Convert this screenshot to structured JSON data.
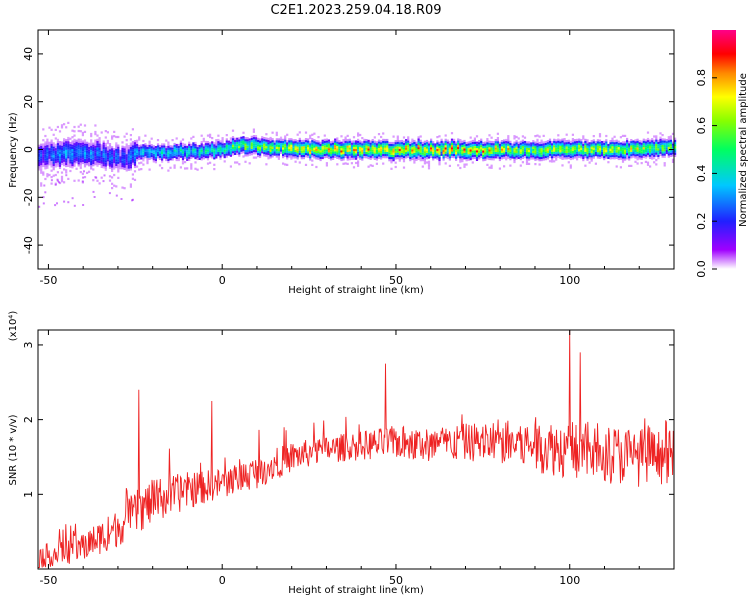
{
  "title": "C2E1.2023.259.04.18.R09",
  "chart_data": [
    {
      "type": "heatmap",
      "xlabel": "Height of straight line (km)",
      "ylabel": "Frequency (Hz)",
      "xlim": [
        -53,
        130
      ],
      "ylim": [
        -50,
        50
      ],
      "xticks": [
        -50,
        0,
        50,
        100
      ],
      "yticks": [
        -40,
        -20,
        0,
        20,
        40
      ],
      "colorbar": {
        "label": "Normalized spectral amplitude",
        "range": [
          0,
          1
        ],
        "ticks": [
          "0.0",
          "0.2",
          "0.4",
          "0.6",
          "0.8"
        ]
      },
      "ridge": {
        "x": [
          -53,
          -45,
          -35,
          -28,
          -25,
          -15,
          0,
          5,
          15,
          30,
          50,
          70,
          90,
          110,
          130
        ],
        "y": [
          -3,
          -1,
          -2,
          -4,
          -1,
          -1,
          0,
          2,
          1,
          0,
          0,
          0,
          0,
          0,
          1
        ],
        "peak_amplitude": [
          0.3,
          0.4,
          0.35,
          0.3,
          0.45,
          0.5,
          0.6,
          0.7,
          0.8,
          0.95,
          0.95,
          0.95,
          0.8,
          0.85,
          0.7
        ]
      }
    },
    {
      "type": "line",
      "xlabel": "Height of straight line (km)",
      "ylabel": "SNR (10 * v/v)",
      "y_multiplier": "(x10⁴)",
      "xlim": [
        -53,
        130
      ],
      "ylim": [
        0,
        3.2
      ],
      "xticks": [
        -50,
        0,
        50,
        100
      ],
      "yticks": [
        1,
        2,
        3
      ],
      "color": "#ee2222",
      "trend": {
        "x": [
          -53,
          -40,
          -30,
          -25,
          -20,
          -10,
          0,
          10,
          20,
          30,
          40,
          50,
          60,
          70,
          80,
          90,
          100,
          110,
          120,
          130
        ],
        "y": [
          0.15,
          0.3,
          0.55,
          0.75,
          0.9,
          1.05,
          1.15,
          1.3,
          1.5,
          1.6,
          1.65,
          1.7,
          1.65,
          1.7,
          1.7,
          1.65,
          1.6,
          1.55,
          1.5,
          1.5
        ],
        "noise": [
          0.15,
          0.2,
          0.25,
          0.3,
          0.3,
          0.25,
          0.2,
          0.22,
          0.2,
          0.18,
          0.2,
          0.22,
          0.25,
          0.25,
          0.3,
          0.35,
          0.4,
          0.4,
          0.4,
          0.35
        ]
      },
      "peaks": [
        {
          "x": -24,
          "y": 2.4
        },
        {
          "x": -3,
          "y": 2.25
        },
        {
          "x": 47,
          "y": 2.75
        },
        {
          "x": 100,
          "y": 3.2
        },
        {
          "x": 103,
          "y": 2.9
        }
      ]
    }
  ]
}
